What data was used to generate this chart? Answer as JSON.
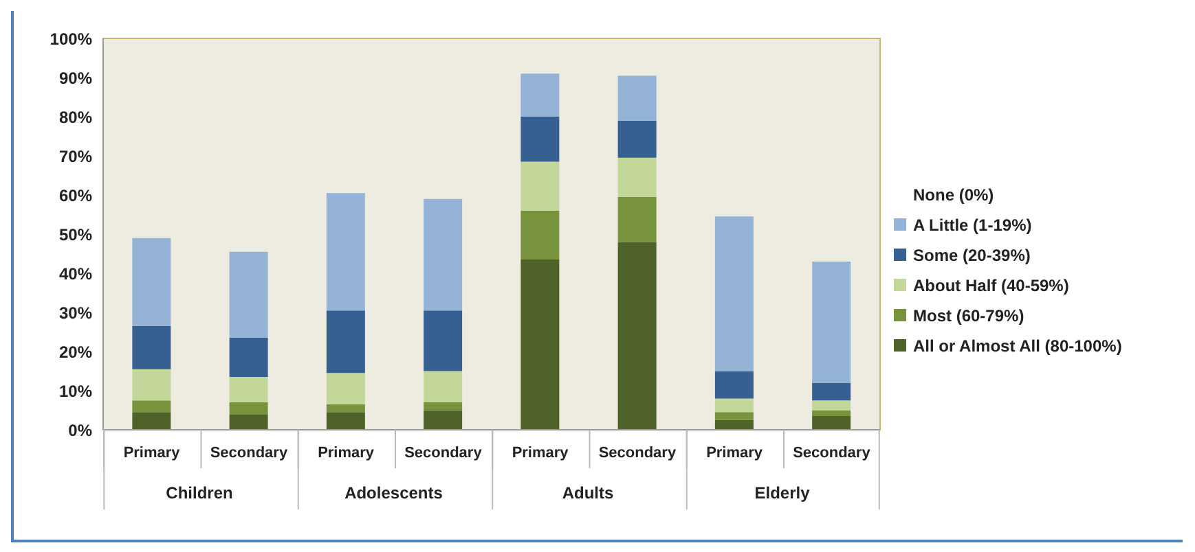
{
  "chart_data": {
    "type": "bar",
    "stacked": true,
    "legend": "right",
    "legend_title": "None (0%)",
    "categories": [
      "Primary",
      "Secondary",
      "Primary",
      "Secondary",
      "Primary",
      "Secondary",
      "Primary",
      "Secondary"
    ],
    "annotations": [
      "Children",
      "Adolescents",
      "Adults",
      "Elderly"
    ],
    "ylim": [
      0,
      100
    ],
    "yticks": [
      {
        "value": 0,
        "label": "0%"
      },
      {
        "value": 10,
        "label": "10%"
      },
      {
        "value": 20,
        "label": "20%"
      },
      {
        "value": 30,
        "label": "30%"
      },
      {
        "value": 40,
        "label": "40%"
      },
      {
        "value": 50,
        "label": "50%"
      },
      {
        "value": 60,
        "label": "60%"
      },
      {
        "value": 70,
        "label": "70%"
      },
      {
        "value": 80,
        "label": "80%"
      },
      {
        "value": 90,
        "label": "90%"
      },
      {
        "value": 100,
        "label": "100%"
      }
    ],
    "series": [
      {
        "name": "All or Almost All (80-100%)",
        "color": "#4f6228",
        "values": [
          4.5,
          4,
          4.5,
          5,
          43.5,
          48,
          2.5,
          3.5
        ]
      },
      {
        "name": "Most (60-79%)",
        "color": "#77933c",
        "values": [
          3,
          3,
          2,
          2,
          12.5,
          11.5,
          2,
          1.5
        ]
      },
      {
        "name": "About Half (40-59%)",
        "color": "#c4d79b",
        "values": [
          8,
          6.5,
          8,
          8,
          12.5,
          10,
          3.5,
          2.5
        ]
      },
      {
        "name": "Some (20-39%)",
        "color": "#376092",
        "values": [
          11,
          10,
          16,
          15.5,
          11.5,
          9.5,
          7,
          4.5
        ]
      },
      {
        "name": "A Little (1-19%)",
        "color": "#95b3d7",
        "values": [
          22.5,
          22,
          30,
          28.5,
          11,
          11.5,
          39.5,
          31
        ]
      }
    ]
  }
}
